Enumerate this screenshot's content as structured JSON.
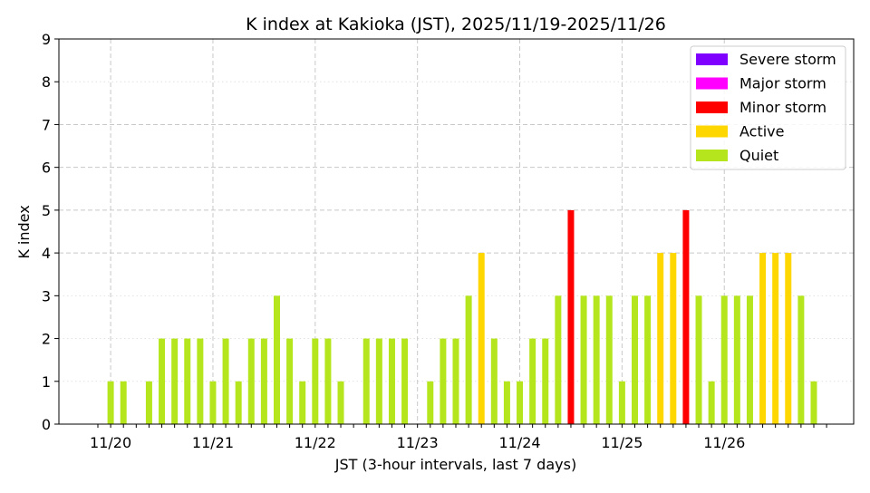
{
  "chart_data": {
    "type": "bar",
    "title": "K index at Kakioka (JST), 2025/11/19-2025/11/26",
    "xlabel": "JST (3-hour intervals, last 7 days)",
    "ylabel": "K index",
    "ylim": [
      0,
      9
    ],
    "yticks": [
      "0",
      "1",
      "2",
      "3",
      "4",
      "5",
      "6",
      "7",
      "8",
      "9"
    ],
    "xtick_labels": [
      {
        "label": "11/20",
        "slot": 1
      },
      {
        "label": "11/21",
        "slot": 9
      },
      {
        "label": "11/22",
        "slot": 17
      },
      {
        "label": "11/23",
        "slot": 25
      },
      {
        "label": "11/24",
        "slot": 33
      },
      {
        "label": "11/25",
        "slot": 41
      },
      {
        "label": "11/26",
        "slot": 49
      }
    ],
    "grid": true,
    "legend_placement": "top-right",
    "legend": [
      {
        "label": "Severe storm",
        "color": "#8000ff"
      },
      {
        "label": "Major storm",
        "color": "#ff00ff"
      },
      {
        "label": "Minor storm",
        "color": "#ff0000"
      },
      {
        "label": "Active",
        "color": "#ffd700"
      },
      {
        "label": "Quiet",
        "color": "#b5e61d"
      }
    ],
    "values": [
      0,
      1,
      1,
      0,
      1,
      2,
      2,
      2,
      2,
      1,
      2,
      1,
      2,
      2,
      3,
      2,
      1,
      2,
      2,
      1,
      0,
      2,
      2,
      2,
      2,
      0,
      1,
      2,
      2,
      3,
      4,
      2,
      1,
      1,
      2,
      2,
      3,
      5,
      3,
      3,
      3,
      1,
      3,
      3,
      4,
      4,
      5,
      3,
      1,
      3,
      3,
      3,
      4,
      4,
      4,
      3,
      1
    ]
  }
}
